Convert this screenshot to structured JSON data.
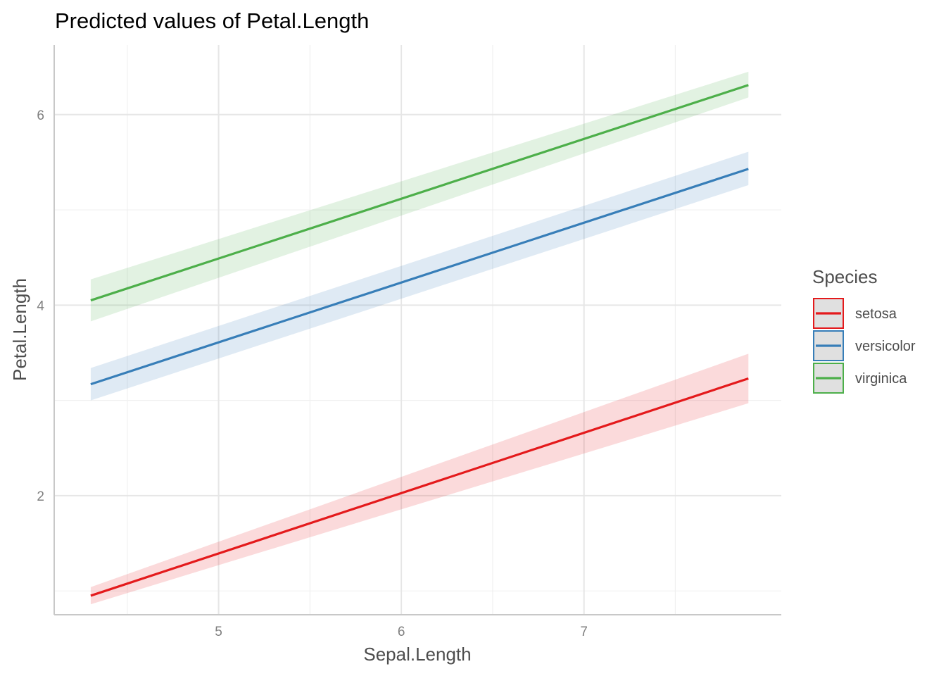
{
  "chart_data": {
    "type": "line",
    "title": "Predicted values of Petal.Length",
    "xlabel": "Sepal.Length",
    "ylabel": "Petal.Length",
    "xlim": [
      4.1,
      8.08
    ],
    "ylim": [
      0.75,
      6.73
    ],
    "x_ticks": [
      5,
      6,
      7
    ],
    "x_tick_labels": [
      "5",
      "6",
      "7"
    ],
    "x_minor_ticks": [
      4.5,
      5.5,
      6.5,
      7.5
    ],
    "y_ticks": [
      2,
      4,
      6
    ],
    "y_tick_labels": [
      "2",
      "4",
      "6"
    ],
    "y_minor_ticks": [
      1,
      3,
      5
    ],
    "grid": true,
    "legend_title": "Species",
    "legend_position": "right",
    "series": [
      {
        "name": "setosa",
        "color": "#e41a1c",
        "x": [
          4.3,
          7.9
        ],
        "y": [
          0.95,
          3.23
        ],
        "ci_low": [
          0.86,
          2.97
        ],
        "ci_high": [
          1.04,
          3.49
        ]
      },
      {
        "name": "versicolor",
        "color": "#377eb8",
        "x": [
          4.3,
          7.9
        ],
        "y": [
          3.17,
          5.43
        ],
        "ci_low": [
          3.0,
          5.26
        ],
        "ci_high": [
          3.34,
          5.61
        ]
      },
      {
        "name": "virginica",
        "color": "#4daf4a",
        "x": [
          4.3,
          7.9
        ],
        "y": [
          4.05,
          6.31
        ],
        "ci_low": [
          3.83,
          6.18
        ],
        "ci_high": [
          4.27,
          6.45
        ]
      }
    ]
  }
}
